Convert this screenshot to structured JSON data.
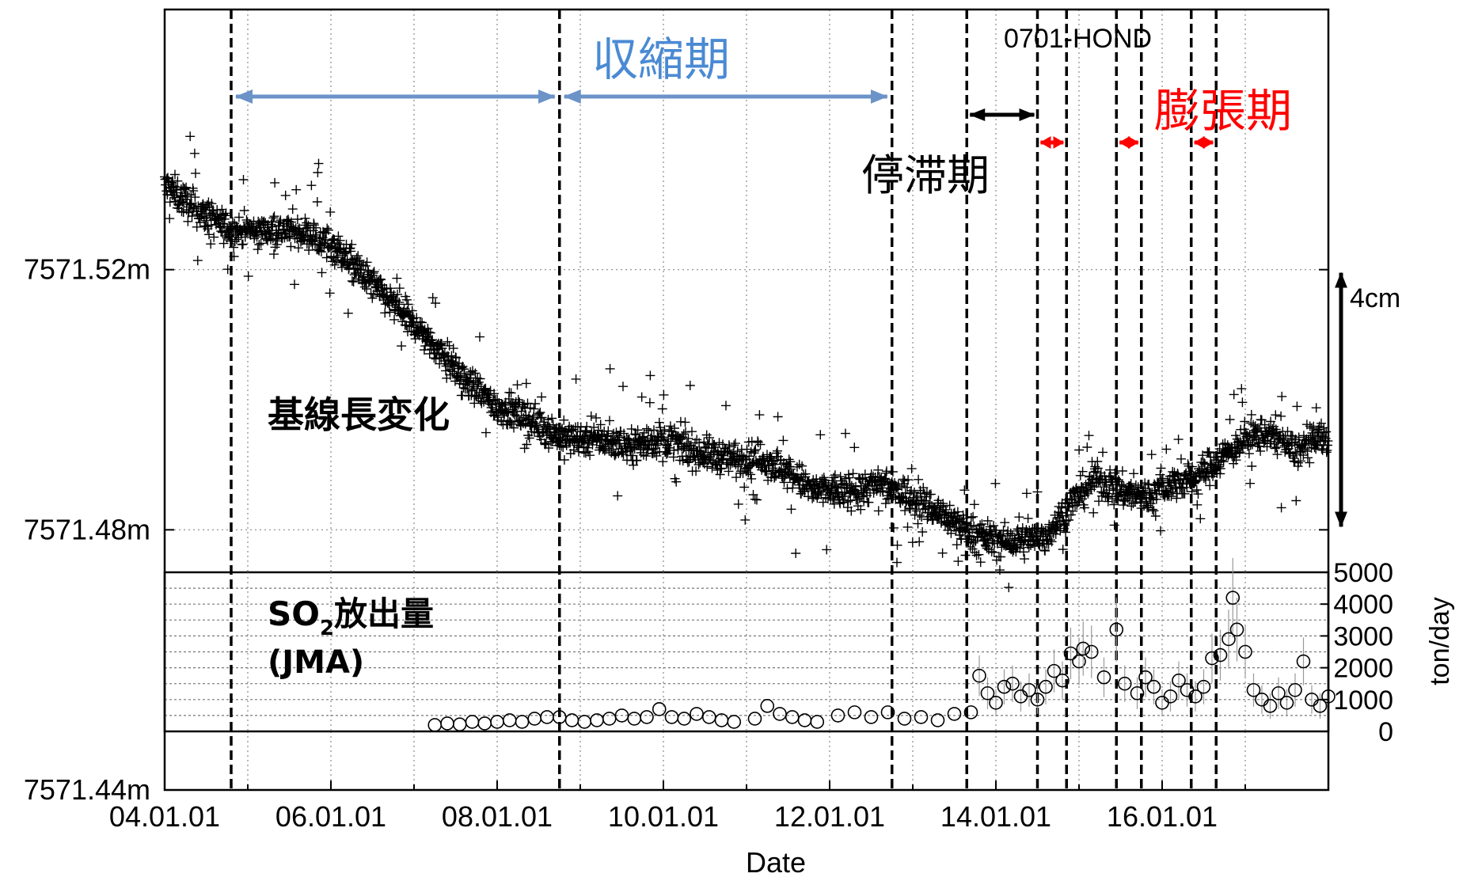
{
  "chart_data": {
    "type": "scatter",
    "xlabel": "Date",
    "x_ticks": [
      "04.01.01",
      "06.01.01",
      "08.01.01",
      "10.01.01",
      "12.01.01",
      "14.01.01",
      "16.01.01"
    ],
    "x_range": [
      2004.0,
      2018.0
    ],
    "baseline": {
      "y_ticks": [
        "7571.52m",
        "7571.48m",
        "7571.44m"
      ],
      "y_tick_values": [
        7571.52,
        7571.48,
        7571.44
      ],
      "ylim": [
        7571.44,
        7571.56
      ],
      "label": "基線長変化",
      "marker": "+",
      "trend": [
        [
          2004.0,
          7571.533
        ],
        [
          2004.4,
          7571.529
        ],
        [
          2004.8,
          7571.526
        ],
        [
          2005.2,
          7571.526
        ],
        [
          2005.6,
          7571.526
        ],
        [
          2006.0,
          7571.524
        ],
        [
          2006.4,
          7571.519
        ],
        [
          2006.8,
          7571.514
        ],
        [
          2007.2,
          7571.509
        ],
        [
          2007.6,
          7571.503
        ],
        [
          2008.0,
          7571.499
        ],
        [
          2008.4,
          7571.497
        ],
        [
          2008.8,
          7571.494
        ],
        [
          2009.2,
          7571.494
        ],
        [
          2009.6,
          7571.493
        ],
        [
          2010.0,
          7571.494
        ],
        [
          2010.4,
          7571.492
        ],
        [
          2010.8,
          7571.491
        ],
        [
          2011.2,
          7571.491
        ],
        [
          2011.6,
          7571.488
        ],
        [
          2011.8,
          7571.486
        ],
        [
          2012.2,
          7571.486
        ],
        [
          2012.6,
          7571.487
        ],
        [
          2013.0,
          7571.485
        ],
        [
          2013.4,
          7571.482
        ],
        [
          2013.8,
          7571.479
        ],
        [
          2014.2,
          7571.478
        ],
        [
          2014.6,
          7571.479
        ],
        [
          2014.9,
          7571.484
        ],
        [
          2015.2,
          7571.488
        ],
        [
          2015.5,
          7571.486
        ],
        [
          2015.8,
          7571.485
        ],
        [
          2016.1,
          7571.487
        ],
        [
          2016.4,
          7571.488
        ],
        [
          2016.7,
          7571.491
        ],
        [
          2017.0,
          7571.494
        ],
        [
          2017.3,
          7571.495
        ],
        [
          2017.6,
          7571.492
        ],
        [
          2017.9,
          7571.494
        ],
        [
          2018.0,
          7571.494
        ]
      ],
      "scale_bar_label": "4cm"
    },
    "so2": {
      "label_line1": "SO",
      "label_sub": "2",
      "label_line1_rest": "放出量",
      "label_line2": "(JMA)",
      "y_axis_label": "ton/day",
      "y_ticks": [
        "5000",
        "4000",
        "3000",
        "2000",
        "1000",
        "0"
      ],
      "y_tick_values": [
        5000,
        4000,
        3000,
        2000,
        1000,
        0
      ],
      "ylim": [
        0,
        5000
      ],
      "marker": "o",
      "points": [
        [
          2007.25,
          200
        ],
        [
          2007.4,
          250
        ],
        [
          2007.55,
          220
        ],
        [
          2007.7,
          300
        ],
        [
          2007.85,
          250
        ],
        [
          2008.0,
          300
        ],
        [
          2008.15,
          350
        ],
        [
          2008.3,
          300
        ],
        [
          2008.45,
          400
        ],
        [
          2008.6,
          450
        ],
        [
          2008.75,
          450
        ],
        [
          2008.9,
          350
        ],
        [
          2009.05,
          300
        ],
        [
          2009.2,
          350
        ],
        [
          2009.35,
          400
        ],
        [
          2009.5,
          500
        ],
        [
          2009.65,
          400
        ],
        [
          2009.8,
          450
        ],
        [
          2009.95,
          700
        ],
        [
          2010.1,
          450
        ],
        [
          2010.25,
          400
        ],
        [
          2010.4,
          550
        ],
        [
          2010.55,
          450
        ],
        [
          2010.7,
          350
        ],
        [
          2010.85,
          300
        ],
        [
          2011.1,
          400
        ],
        [
          2011.25,
          800
        ],
        [
          2011.4,
          550
        ],
        [
          2011.55,
          450
        ],
        [
          2011.7,
          350
        ],
        [
          2011.85,
          300
        ],
        [
          2012.1,
          500
        ],
        [
          2012.3,
          600
        ],
        [
          2012.5,
          450
        ],
        [
          2012.7,
          600
        ],
        [
          2012.9,
          400
        ],
        [
          2013.1,
          450
        ],
        [
          2013.3,
          350
        ],
        [
          2013.5,
          550
        ],
        [
          2013.7,
          600
        ],
        [
          2013.8,
          1750
        ],
        [
          2013.9,
          1200
        ],
        [
          2014.0,
          900
        ],
        [
          2014.1,
          1400
        ],
        [
          2014.2,
          1500
        ],
        [
          2014.3,
          1100
        ],
        [
          2014.4,
          1300
        ],
        [
          2014.5,
          1000
        ],
        [
          2014.6,
          1400
        ],
        [
          2014.7,
          1900
        ],
        [
          2014.8,
          1600
        ],
        [
          2014.9,
          2450
        ],
        [
          2015.0,
          2200
        ],
        [
          2015.05,
          2600
        ],
        [
          2015.15,
          2500
        ],
        [
          2015.3,
          1700
        ],
        [
          2015.45,
          3200
        ],
        [
          2015.55,
          1500
        ],
        [
          2015.7,
          1200
        ],
        [
          2015.8,
          1700
        ],
        [
          2015.9,
          1400
        ],
        [
          2016.0,
          900
        ],
        [
          2016.1,
          1100
        ],
        [
          2016.2,
          1600
        ],
        [
          2016.3,
          1300
        ],
        [
          2016.4,
          1100
        ],
        [
          2016.5,
          1400
        ],
        [
          2016.6,
          2300
        ],
        [
          2016.7,
          2400
        ],
        [
          2016.8,
          2900
        ],
        [
          2016.85,
          4200
        ],
        [
          2016.9,
          3200
        ],
        [
          2017.0,
          2500
        ],
        [
          2017.1,
          1300
        ],
        [
          2017.2,
          1000
        ],
        [
          2017.3,
          800
        ],
        [
          2017.4,
          1200
        ],
        [
          2017.5,
          900
        ],
        [
          2017.6,
          1300
        ],
        [
          2017.7,
          2200
        ],
        [
          2017.8,
          1000
        ],
        [
          2017.9,
          800
        ],
        [
          2018.0,
          1100
        ]
      ]
    },
    "dashed_lines_x": [
      2004.8,
      2008.75,
      2012.75,
      2013.65,
      2014.5,
      2014.85,
      2015.45,
      2015.75,
      2016.35,
      2016.65
    ],
    "phase_annotations": {
      "contraction": "収縮期",
      "stagnation": "停滞期",
      "expansion": "膨張期",
      "station": "0701-HOND"
    },
    "colors": {
      "contraction": "#4a8ad4",
      "contraction_arrow": "#6b93c8",
      "expansion": "#ff0000",
      "data": "#000000"
    }
  }
}
